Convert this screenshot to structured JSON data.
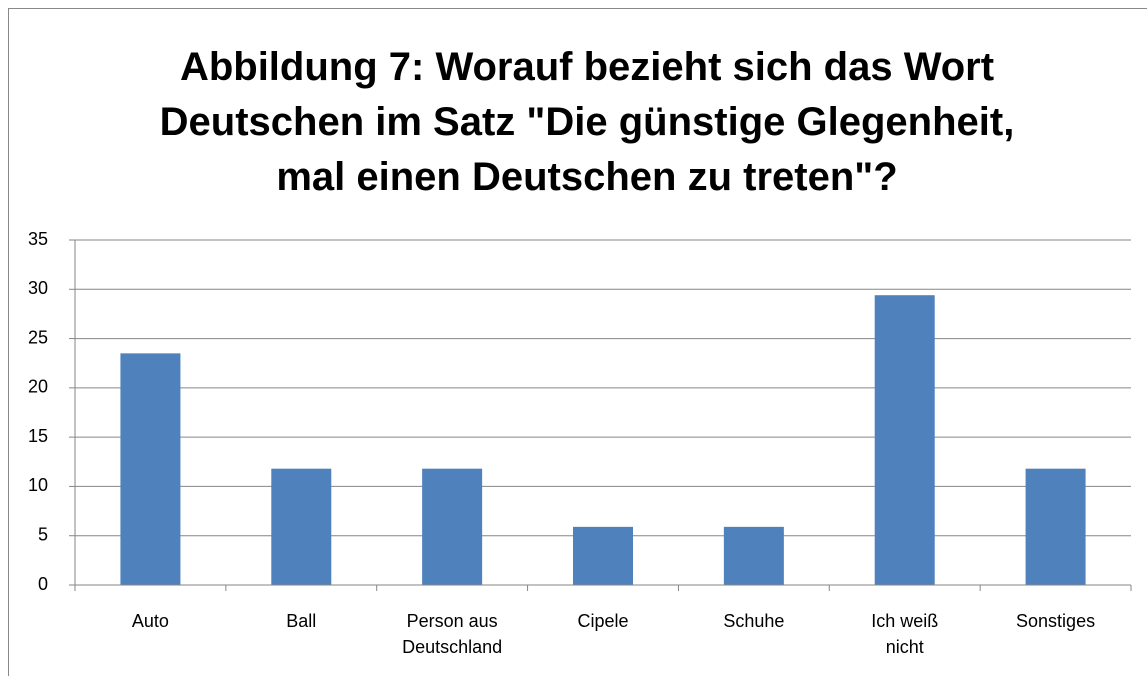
{
  "chart_data": {
    "type": "bar",
    "title": "Abbildung 7: Worauf bezieht sich das Wort\nDeutschen im Satz \"Die günstige Glegenheit,\nmal einen Deutschen zu treten\"?",
    "categories": [
      "Auto",
      "Ball",
      "Person aus Deutschland",
      "Cipele",
      "Schuhe",
      "Ich weiß nicht",
      "Sonstiges"
    ],
    "values": [
      23.5,
      11.8,
      11.8,
      5.9,
      5.9,
      29.4,
      11.8
    ],
    "color": "#4f81bd",
    "ylim": [
      0,
      35
    ],
    "yticks": [
      0,
      5,
      10,
      15,
      20,
      25,
      30,
      35
    ],
    "grid": true
  }
}
